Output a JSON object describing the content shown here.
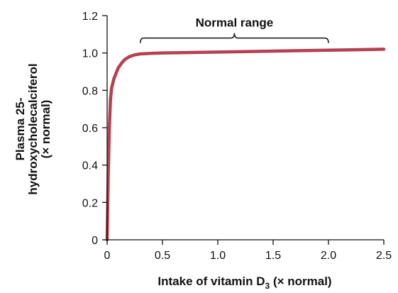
{
  "chart_data": {
    "type": "line",
    "title": "",
    "xlabel": {
      "prefix": "Intake of vitamin D",
      "subscript": "3",
      "suffix": " (× normal)"
    },
    "ylabel": {
      "line1": "Plasma 25-",
      "line2": "hydroxycholecalciferol",
      "line3": "(× normal)"
    },
    "xlim": [
      0,
      2.5
    ],
    "ylim": [
      0,
      1.2
    ],
    "x_ticks": [
      {
        "value": 0,
        "label": "0"
      },
      {
        "value": 0.5,
        "label": "0.5"
      },
      {
        "value": 1.0,
        "label": "1.0"
      },
      {
        "value": 1.5,
        "label": "1.5"
      },
      {
        "value": 2.0,
        "label": "2.0"
      },
      {
        "value": 2.5,
        "label": "2.5"
      }
    ],
    "y_ticks": [
      {
        "value": 0,
        "label": "0"
      },
      {
        "value": 0.2,
        "label": "0.2"
      },
      {
        "value": 0.4,
        "label": "0.4"
      },
      {
        "value": 0.6,
        "label": "0.6"
      },
      {
        "value": 0.8,
        "label": "0.8"
      },
      {
        "value": 1.0,
        "label": "1.0"
      },
      {
        "value": 1.2,
        "label": "1.2"
      }
    ],
    "grid": false,
    "series": [
      {
        "color": "#b5404f",
        "points": [
          [
            0.0,
            0.0
          ],
          [
            0.01,
            0.35
          ],
          [
            0.02,
            0.6
          ],
          [
            0.03,
            0.75
          ],
          [
            0.04,
            0.81
          ],
          [
            0.06,
            0.86
          ],
          [
            0.08,
            0.89
          ],
          [
            0.1,
            0.92
          ],
          [
            0.13,
            0.945
          ],
          [
            0.16,
            0.965
          ],
          [
            0.2,
            0.98
          ],
          [
            0.25,
            0.99
          ],
          [
            0.3,
            0.995
          ],
          [
            0.4,
            0.998
          ],
          [
            0.5,
            1.0
          ],
          [
            1.0,
            1.005
          ],
          [
            1.5,
            1.01
          ],
          [
            2.0,
            1.015
          ],
          [
            2.5,
            1.02
          ]
        ]
      }
    ],
    "annotations": [
      {
        "type": "bracket",
        "label": "Normal range",
        "x_start": 0.3,
        "x_end": 2.0,
        "y": 1.08
      }
    ]
  }
}
